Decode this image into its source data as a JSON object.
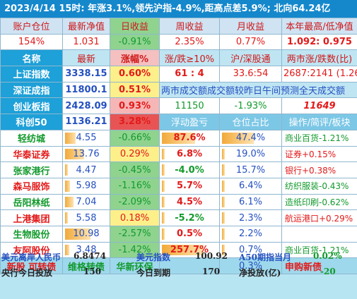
{
  "banner": {
    "text": "2023/4/14  15时: 年涨3.1%,领先沪指-4.9%,距高点差5.9%; 北向64.24亿"
  },
  "header1": [
    "账户仓位",
    "最新净值",
    "日收益",
    "周收益",
    "月收益",
    "本年最高/低净值"
  ],
  "account": {
    "position": "154%",
    "nav": "1.031",
    "day": "-0.91%",
    "week": "2.35%",
    "month": "0.77%",
    "year_high_low": "1.092: 0.975"
  },
  "header2": [
    "名称",
    "最新",
    "涨幅%",
    "涨/跌≥10%",
    "沪/深股通",
    "两市涨/跌数(比)"
  ],
  "indices": [
    {
      "name": "上证指数",
      "last": "3338.15",
      "pct": "0.60%",
      "c4": "61 : 4",
      "c5": "33.6:54",
      "c6": "2687:2141 (1.26)"
    },
    {
      "name": "深证成指",
      "last": "11800.1",
      "pct": "0.51%",
      "note": "两市成交额成交额较昨日午间预测全天成交额"
    },
    {
      "name": "创业板指",
      "last": "2428.09",
      "pct": "0.93%",
      "c4": "11150",
      "c5": "-1.93%",
      "c6": "11649"
    },
    {
      "name": "科创50",
      "last": "1136.21",
      "pct": "3.28%",
      "c4": "浮动盈亏",
      "c5": "仓位占比",
      "c6": "操作/简评/板块"
    }
  ],
  "stocks": [
    {
      "name": "轻纺城",
      "price": "4.55",
      "pct": "-0.66%",
      "pnl": "87.6%",
      "weight": "47.4%",
      "note": "商业百货-1.21%",
      "price_level": 0.25,
      "pnl_level": 0.6,
      "weight_level": 0.55
    },
    {
      "name": "华泰证券",
      "price": "13.76",
      "pct": "0.29%",
      "pnl": "6.8%",
      "weight": "19.0%",
      "note": "证券+0.15%",
      "price_level": 0.45,
      "pnl_level": 0,
      "weight_level": 0
    },
    {
      "name": "张家港行",
      "price": "4.47",
      "pct": "-0.45%",
      "pnl": "-4.0%",
      "weight": "15.7%",
      "note": "银行+0.38%",
      "price_level": 0,
      "pnl_level": 0,
      "weight_level": 0
    },
    {
      "name": "森马服饰",
      "price": "5.98",
      "pct": "-1.16%",
      "pnl": "5.7%",
      "weight": "6.4%",
      "note": "纺织服装-0.43%",
      "price_level": 0.12,
      "pnl_level": 0,
      "weight_level": 0
    },
    {
      "name": "岳阳林纸",
      "price": "7.04",
      "pct": "-2.09%",
      "pnl": "4.5%",
      "weight": "6.1%",
      "note": "造纸印刷-0.62%",
      "price_level": 0.2,
      "pnl_level": 0,
      "weight_level": 0
    },
    {
      "name": "上港集团",
      "price": "5.58",
      "pct": "0.18%",
      "pnl": "-5.2%",
      "weight": "2.3%",
      "note": "航运港口+0.29%",
      "price_level": 0,
      "pnl_level": 0,
      "weight_level": 0
    },
    {
      "name": "生物股份",
      "price": "10.98",
      "pct": "-2.57%",
      "pnl": "0.5%",
      "weight": "2.2%",
      "note": "",
      "price_level": 0.6,
      "pnl_level": 0,
      "weight_level": 0
    },
    {
      "name": "友阿股份",
      "price": "3.48",
      "pct": "-1.42%",
      "pnl": "257.7%",
      "weight": "0.7%",
      "note": "商业百货-1.21%",
      "price_level": 0.1,
      "pnl_level": 0.75,
      "weight_level": 0
    }
  ],
  "bottom_row": {
    "c1": "新股 可转债",
    "c2": "维格转债",
    "c3": "华新环保",
    "c4": "",
    "c5": "0.3%",
    "c6": "申购新债"
  },
  "footer": {
    "row1": {
      "label1": "美元离岸人民币",
      "value1": "6.8474",
      "label2": "美元指数",
      "value2": "100.92",
      "label3": "A50期指当月",
      "value3": "0.02%"
    },
    "row2": {
      "label1": "央行今日投放",
      "value1": "150",
      "label2": "今日到期",
      "value2": "170",
      "label3": "净投放(亿)",
      "value3": "-20"
    }
  },
  "colors": {
    "banner_bg": "#1588cc",
    "red": "#e21a1a",
    "green": "#129a2c",
    "blue": "#2450c0"
  }
}
